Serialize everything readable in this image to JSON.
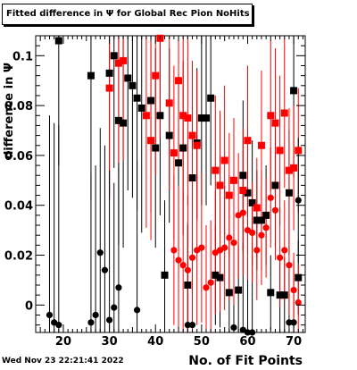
{
  "chart_data": {
    "type": "scatter",
    "title": "Fitted difference in Ψ for Global Rec Pion NoHits",
    "xlabel": "No. of Fit Points",
    "ylabel": "difference in Ψ",
    "xlim": [
      14,
      72.5
    ],
    "ylim": [
      -0.011,
      0.108
    ],
    "xticks": [
      20,
      30,
      40,
      50,
      60,
      70
    ],
    "yticks": [
      0,
      0.02,
      0.04,
      0.06,
      0.08,
      0.1
    ],
    "ytick_labels": [
      "0",
      "0.02",
      "0.04",
      "0.06",
      "0.08",
      "0.1"
    ],
    "grid": false,
    "series": [
      {
        "marker": "square",
        "color": "#000000",
        "points": [
          {
            "x": 19,
            "y": 0.106,
            "err": 0.05
          },
          {
            "x": 26,
            "y": 0.092,
            "err": 0.05
          },
          {
            "x": 30,
            "y": 0.093,
            "err": 0.05
          },
          {
            "x": 31,
            "y": 0.1,
            "err": 0.045
          },
          {
            "x": 32,
            "y": 0.074,
            "err": 0.05
          },
          {
            "x": 33,
            "y": 0.073,
            "err": 0.05
          },
          {
            "x": 34,
            "y": 0.091,
            "err": 0.045
          },
          {
            "x": 35,
            "y": 0.088,
            "err": 0.045
          },
          {
            "x": 36,
            "y": 0.083,
            "err": 0.045
          },
          {
            "x": 37,
            "y": 0.079,
            "err": 0.05
          },
          {
            "x": 39,
            "y": 0.082,
            "err": 0.045
          },
          {
            "x": 40,
            "y": 0.063,
            "err": 0.04
          },
          {
            "x": 41,
            "y": 0.076,
            "err": 0.04
          },
          {
            "x": 42,
            "y": 0.012,
            "err": 0.03
          },
          {
            "x": 43,
            "y": 0.068,
            "err": 0.035
          },
          {
            "x": 45,
            "y": 0.057,
            "err": 0.035
          },
          {
            "x": 46,
            "y": 0.063,
            "err": 0.035
          },
          {
            "x": 47,
            "y": 0.008,
            "err": 0.025
          },
          {
            "x": 48,
            "y": 0.051,
            "err": 0.03
          },
          {
            "x": 49,
            "y": 0.065,
            "err": 0.03
          },
          {
            "x": 50,
            "y": 0.075,
            "err": 0.035
          },
          {
            "x": 51,
            "y": 0.075,
            "err": 0.035
          },
          {
            "x": 52,
            "y": 0.083,
            "err": 0.035
          },
          {
            "x": 53,
            "y": 0.012,
            "err": 0.02
          },
          {
            "x": 54,
            "y": 0.011,
            "err": 0.02
          },
          {
            "x": 56,
            "y": 0.005,
            "err": 0.018
          },
          {
            "x": 58,
            "y": 0.006,
            "err": 0.018
          },
          {
            "x": 59,
            "y": 0.052,
            "err": 0.03
          },
          {
            "x": 60,
            "y": 0.045,
            "err": 0.025
          },
          {
            "x": 61,
            "y": 0.041,
            "err": 0.025
          },
          {
            "x": 62,
            "y": 0.034,
            "err": 0.02
          },
          {
            "x": 63,
            "y": 0.034,
            "err": 0.02
          },
          {
            "x": 64,
            "y": 0.036,
            "err": 0.02
          },
          {
            "x": 65,
            "y": 0.005,
            "err": 0.015
          },
          {
            "x": 66,
            "y": 0.048,
            "err": 0.025
          },
          {
            "x": 67,
            "y": 0.004,
            "err": 0.015
          },
          {
            "x": 68,
            "y": 0.004,
            "err": 0.015
          },
          {
            "x": 69,
            "y": 0.045,
            "err": 0.025
          },
          {
            "x": 70,
            "y": 0.086,
            "err": 0.035
          },
          {
            "x": 71,
            "y": 0.011,
            "err": 0.015
          }
        ]
      },
      {
        "marker": "square",
        "color": "#ff0000",
        "points": [
          {
            "x": 30,
            "y": 0.087,
            "err": 0.045
          },
          {
            "x": 32,
            "y": 0.097,
            "err": 0.04
          },
          {
            "x": 33,
            "y": 0.098,
            "err": 0.04
          },
          {
            "x": 38,
            "y": 0.076,
            "err": 0.045
          },
          {
            "x": 39,
            "y": 0.066,
            "err": 0.04
          },
          {
            "x": 40,
            "y": 0.092,
            "err": 0.04
          },
          {
            "x": 41,
            "y": 0.107,
            "err": 0.04
          },
          {
            "x": 43,
            "y": 0.081,
            "err": 0.035
          },
          {
            "x": 44,
            "y": 0.061,
            "err": 0.035
          },
          {
            "x": 45,
            "y": 0.09,
            "err": 0.035
          },
          {
            "x": 46,
            "y": 0.076,
            "err": 0.035
          },
          {
            "x": 47,
            "y": 0.075,
            "err": 0.035
          },
          {
            "x": 48,
            "y": 0.068,
            "err": 0.03
          },
          {
            "x": 49,
            "y": 0.064,
            "err": 0.03
          },
          {
            "x": 53,
            "y": 0.054,
            "err": 0.03
          },
          {
            "x": 54,
            "y": 0.048,
            "err": 0.03
          },
          {
            "x": 55,
            "y": 0.058,
            "err": 0.03
          },
          {
            "x": 56,
            "y": 0.044,
            "err": 0.025
          },
          {
            "x": 57,
            "y": 0.05,
            "err": 0.025
          },
          {
            "x": 59,
            "y": 0.046,
            "err": 0.025
          },
          {
            "x": 60,
            "y": 0.066,
            "err": 0.03
          },
          {
            "x": 62,
            "y": 0.039,
            "err": 0.02
          },
          {
            "x": 63,
            "y": 0.064,
            "err": 0.03
          },
          {
            "x": 65,
            "y": 0.076,
            "err": 0.03
          },
          {
            "x": 66,
            "y": 0.073,
            "err": 0.03
          },
          {
            "x": 67,
            "y": 0.062,
            "err": 0.03
          },
          {
            "x": 68,
            "y": 0.077,
            "err": 0.03
          },
          {
            "x": 69,
            "y": 0.054,
            "err": 0.025
          },
          {
            "x": 70,
            "y": 0.055,
            "err": 0.025
          },
          {
            "x": 71,
            "y": 0.062,
            "err": 0.025
          }
        ]
      },
      {
        "marker": "circle",
        "color": "#000000",
        "points": [
          {
            "x": 17,
            "y": -0.004,
            "err": 0.08
          },
          {
            "x": 18,
            "y": -0.007,
            "err": 0.08
          },
          {
            "x": 19,
            "y": -0.008,
            "err": 0.08
          },
          {
            "x": 26,
            "y": -0.007,
            "err": 0.06
          },
          {
            "x": 27,
            "y": -0.004,
            "err": 0.06
          },
          {
            "x": 28,
            "y": 0.021,
            "err": 0.05
          },
          {
            "x": 29,
            "y": 0.014,
            "err": 0.05
          },
          {
            "x": 30,
            "y": -0.006,
            "err": 0.06
          },
          {
            "x": 31,
            "y": -0.001,
            "err": 0.05
          },
          {
            "x": 32,
            "y": 0.007,
            "err": 0.05
          },
          {
            "x": 36,
            "y": -0.002,
            "err": 0.06
          },
          {
            "x": 47,
            "y": -0.008,
            "err": 0.04
          },
          {
            "x": 48,
            "y": -0.008,
            "err": 0.04
          },
          {
            "x": 57,
            "y": -0.009,
            "err": 0.035
          },
          {
            "x": 59,
            "y": -0.01,
            "err": 0.035
          },
          {
            "x": 60,
            "y": -0.011,
            "err": 0.03
          },
          {
            "x": 61,
            "y": -0.011,
            "err": 0.03
          },
          {
            "x": 69,
            "y": -0.007,
            "err": 0.025
          },
          {
            "x": 70,
            "y": -0.007,
            "err": 0.025
          },
          {
            "x": 71,
            "y": 0.042,
            "err": 0.025
          }
        ]
      },
      {
        "marker": "circle",
        "color": "#ff0000",
        "points": [
          {
            "x": 44,
            "y": 0.022,
            "err": 0.03
          },
          {
            "x": 45,
            "y": 0.018,
            "err": 0.03
          },
          {
            "x": 46,
            "y": 0.016,
            "err": 0.03
          },
          {
            "x": 47,
            "y": 0.014,
            "err": 0.03
          },
          {
            "x": 48,
            "y": 0.019,
            "err": 0.03
          },
          {
            "x": 49,
            "y": 0.022,
            "err": 0.03
          },
          {
            "x": 50,
            "y": 0.023,
            "err": 0.03
          },
          {
            "x": 51,
            "y": 0.007,
            "err": 0.025
          },
          {
            "x": 52,
            "y": 0.009,
            "err": 0.025
          },
          {
            "x": 53,
            "y": 0.021,
            "err": 0.025
          },
          {
            "x": 54,
            "y": 0.022,
            "err": 0.025
          },
          {
            "x": 55,
            "y": 0.023,
            "err": 0.025
          },
          {
            "x": 56,
            "y": 0.027,
            "err": 0.025
          },
          {
            "x": 57,
            "y": 0.025,
            "err": 0.025
          },
          {
            "x": 58,
            "y": 0.036,
            "err": 0.025
          },
          {
            "x": 59,
            "y": 0.037,
            "err": 0.025
          },
          {
            "x": 60,
            "y": 0.03,
            "err": 0.02
          },
          {
            "x": 61,
            "y": 0.029,
            "err": 0.02
          },
          {
            "x": 62,
            "y": 0.022,
            "err": 0.02
          },
          {
            "x": 63,
            "y": 0.028,
            "err": 0.02
          },
          {
            "x": 64,
            "y": 0.031,
            "err": 0.02
          },
          {
            "x": 65,
            "y": 0.043,
            "err": 0.02
          },
          {
            "x": 66,
            "y": 0.038,
            "err": 0.02
          },
          {
            "x": 67,
            "y": 0.019,
            "err": 0.02
          },
          {
            "x": 68,
            "y": 0.022,
            "err": 0.02
          },
          {
            "x": 69,
            "y": 0.016,
            "err": 0.02
          },
          {
            "x": 70,
            "y": 0.006,
            "err": 0.015
          },
          {
            "x": 71,
            "y": 0.001,
            "err": 0.015
          }
        ]
      }
    ]
  },
  "footer": {
    "timestamp": "Wed Nov 23 22:21:41 2022"
  }
}
